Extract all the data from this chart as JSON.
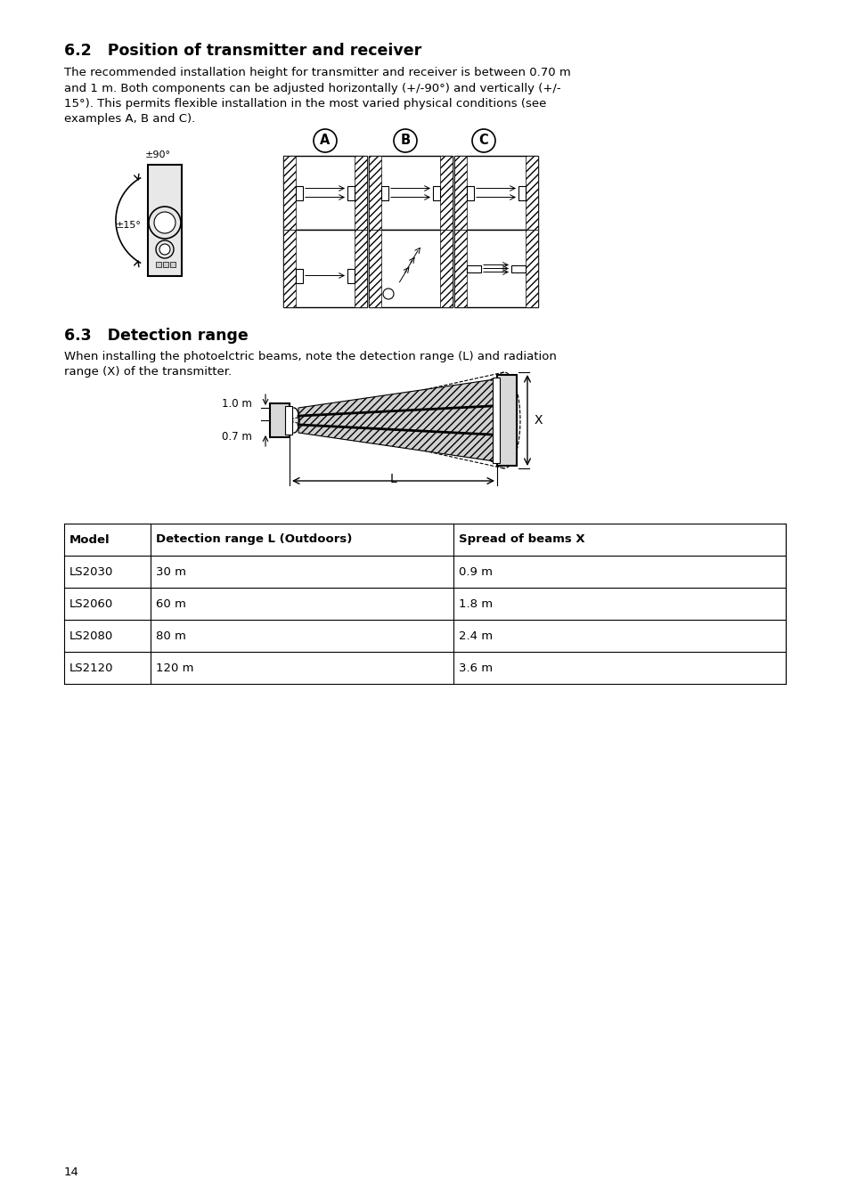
{
  "title_62": "6.2   Position of transmitter and receiver",
  "body_62": "The recommended installation height for transmitter and receiver is between 0.70 m\nand 1 m. Both components can be adjusted horizontally (+/-90°) and vertically (+/-\n15°). This permits flexible installation in the most varied physical conditions (see\nexamples A, B and C).",
  "title_63": "6.3   Detection range",
  "body_63": "When installing the photoelctric beams, note the detection range (L) and radiation\nrange (X) of the transmitter.",
  "table_headers": [
    "Model",
    "Detection range L (Outdoors)",
    "Spread of beams X"
  ],
  "table_rows": [
    [
      "LS2030",
      "30 m",
      "0.9 m"
    ],
    [
      "LS2060",
      "60 m",
      "1.8 m"
    ],
    [
      "LS2080",
      "80 m",
      "2.4 m"
    ],
    [
      "LS2120",
      "120 m",
      "3.6 m"
    ]
  ],
  "page_number": "14",
  "bg_color": "#ffffff",
  "text_color": "#000000"
}
